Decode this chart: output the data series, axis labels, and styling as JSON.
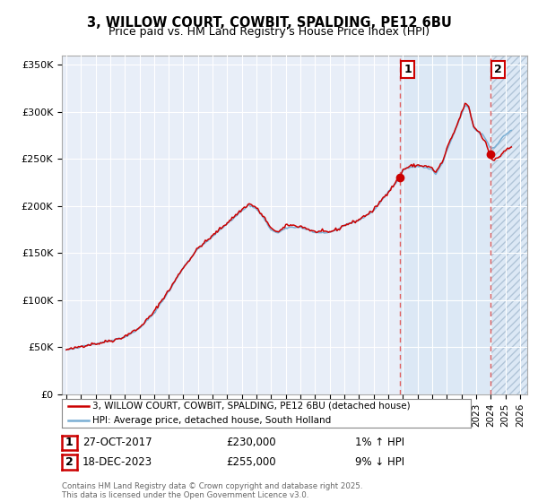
{
  "title": "3, WILLOW COURT, COWBIT, SPALDING, PE12 6BU",
  "subtitle": "Price paid vs. HM Land Registry's House Price Index (HPI)",
  "title_fontsize": 10.5,
  "subtitle_fontsize": 9,
  "ylim": [
    0,
    360000
  ],
  "xlim_start": 1994.7,
  "xlim_end": 2026.5,
  "yticks": [
    0,
    50000,
    100000,
    150000,
    200000,
    250000,
    300000,
    350000
  ],
  "ytick_labels": [
    "£0",
    "£50K",
    "£100K",
    "£150K",
    "£200K",
    "£250K",
    "£300K",
    "£350K"
  ],
  "xtick_years": [
    1995,
    1996,
    1997,
    1998,
    1999,
    2000,
    2001,
    2002,
    2003,
    2004,
    2005,
    2006,
    2007,
    2008,
    2009,
    2010,
    2011,
    2012,
    2013,
    2014,
    2015,
    2016,
    2017,
    2018,
    2019,
    2020,
    2021,
    2022,
    2023,
    2024,
    2025,
    2026
  ],
  "background_color": "#ffffff",
  "plot_bg_color": "#e8eef8",
  "grid_color": "#ffffff",
  "line_color_red": "#cc0000",
  "line_color_blue": "#7aafd4",
  "vline_color": "#e06060",
  "marker_color_red": "#cc0000",
  "sale1_x": 2017.82,
  "sale1_y": 230000,
  "sale1_label": "1",
  "sale2_x": 2023.97,
  "sale2_y": 255000,
  "sale2_label": "2",
  "shade1_color": "#dce8f5",
  "hatch_color": "#c8d4e0",
  "legend_line1": "3, WILLOW COURT, COWBIT, SPALDING, PE12 6BU (detached house)",
  "legend_line2": "HPI: Average price, detached house, South Holland",
  "footer_line1": "Contains HM Land Registry data © Crown copyright and database right 2025.",
  "footer_line2": "This data is licensed under the Open Government Licence v3.0.",
  "table_row1_num": "1",
  "table_row1_date": "27-OCT-2017",
  "table_row1_price": "£230,000",
  "table_row1_hpi": "1% ↑ HPI",
  "table_row2_num": "2",
  "table_row2_date": "18-DEC-2023",
  "table_row2_price": "£255,000",
  "table_row2_hpi": "9% ↓ HPI"
}
